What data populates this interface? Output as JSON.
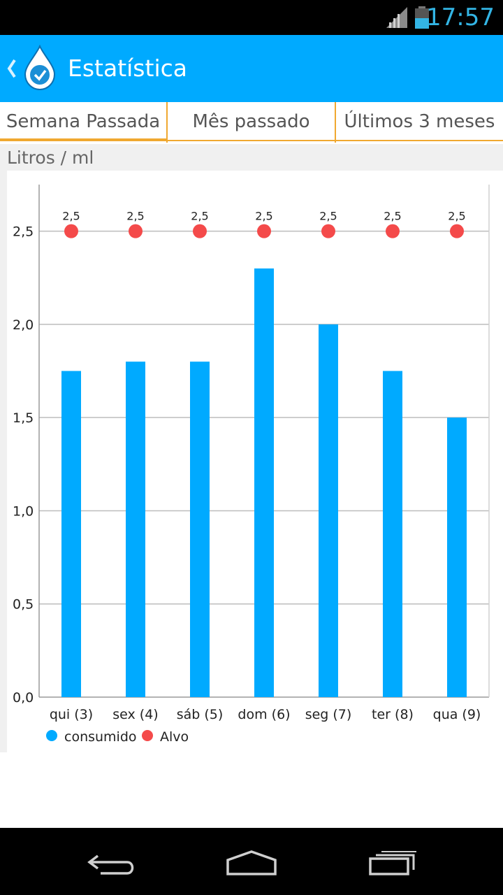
{
  "status_bar": {
    "time": "17:57"
  },
  "header": {
    "title": "Estatística",
    "back_icon": "chevron-left-icon",
    "app_icon": "water-drop-check-icon"
  },
  "tabs": [
    {
      "label": "Semana Passada",
      "active": true
    },
    {
      "label": "Mês passado",
      "active": false
    },
    {
      "label": "Últimos 3 meses",
      "active": false
    }
  ],
  "section_label": "Litros / ml",
  "colors": {
    "accent": "#00aaff",
    "target": "#f44a4a",
    "tab_indicator": "#f0a830"
  },
  "chart_data": {
    "type": "bar",
    "categories": [
      "qui (3)",
      "sex (4)",
      "sáb (5)",
      "dom (6)",
      "seg (7)",
      "ter (8)",
      "qua (9)"
    ],
    "series": [
      {
        "name": "consumido",
        "type": "bar",
        "color": "#00aaff",
        "values": [
          1.75,
          1.8,
          1.8,
          2.3,
          2.0,
          1.75,
          1.5
        ]
      },
      {
        "name": "Alvo",
        "type": "scatter",
        "color": "#f44a4a",
        "values": [
          2.5,
          2.5,
          2.5,
          2.5,
          2.5,
          2.5,
          2.5
        ],
        "labels": [
          "2,5",
          "2,5",
          "2,5",
          "2,5",
          "2,5",
          "2,5",
          "2,5"
        ]
      }
    ],
    "yticks": [
      0,
      0.5,
      1.0,
      1.5,
      2.0,
      2.5
    ],
    "ytick_labels": [
      "0,0",
      "0,5",
      "1,0",
      "1,5",
      "2,0",
      "2,5"
    ],
    "ylim": [
      0,
      2.75
    ],
    "grid": true,
    "legend": "bottom-left"
  },
  "nav_bar": {
    "back_icon": "nav-back-icon",
    "home_icon": "nav-home-icon",
    "recents_icon": "nav-recents-icon"
  }
}
